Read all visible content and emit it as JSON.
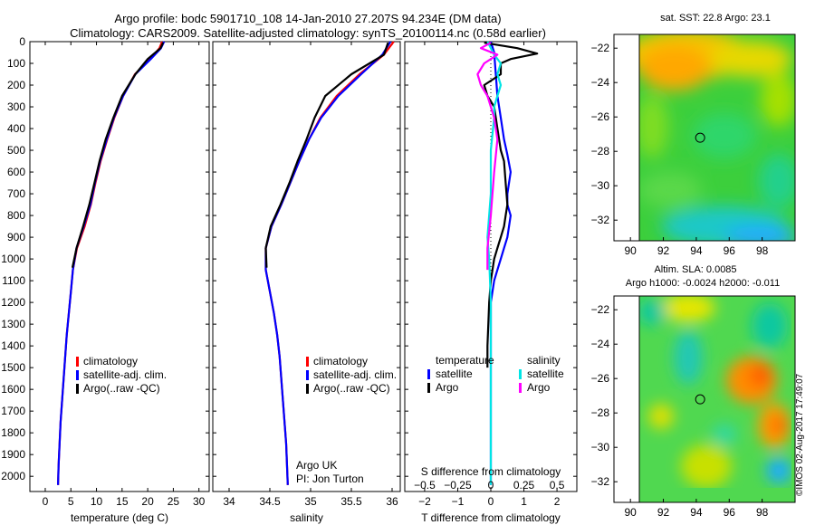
{
  "header": {
    "line1": "Argo profile: bodc 5901710_108 14-Jan-2010 27.207S 94.234E (DM data)",
    "line2": "Climatology: CARS2009. Satellite-adjusted climatology: synTS_20100114.nc (0.58d earlier)"
  },
  "stamp": "©IMOS 02-Aug-2017 17:49:07",
  "colors": {
    "climatology": "#ff0000",
    "satellite": "#0000ff",
    "argo": "#000000",
    "sal_satellite": "#00e5e5",
    "sal_argo": "#ff00ff"
  },
  "chart_data": [
    {
      "type": "line",
      "xlabel": "temperature (deg C)",
      "xlim": [
        -3,
        32
      ],
      "xticks": [
        0,
        5,
        10,
        15,
        20,
        25,
        30
      ],
      "ylim": [
        2070,
        0
      ],
      "yticks": [
        0,
        100,
        200,
        300,
        400,
        500,
        600,
        700,
        800,
        900,
        1000,
        1100,
        1200,
        1300,
        1400,
        1500,
        1600,
        1700,
        1800,
        1900,
        2000
      ],
      "legend": [
        "climatology",
        "satellite-adj. clim.",
        "Argo(..raw -QC)"
      ],
      "series": [
        {
          "name": "climatology",
          "color": "#ff0000",
          "x": [
            22.8,
            22.3,
            20.5,
            17.5,
            15.2,
            13.5,
            12.1,
            10.8,
            9.8,
            8.9,
            7.7,
            6.2,
            5.4,
            5.0,
            4.6,
            4.2,
            3.9,
            3.6,
            3.3,
            3.0,
            2.8,
            2.6,
            2.5
          ],
          "y": [
            0,
            30,
            80,
            150,
            250,
            350,
            450,
            550,
            650,
            750,
            850,
            950,
            1050,
            1150,
            1250,
            1350,
            1450,
            1550,
            1650,
            1750,
            1850,
            1950,
            2040
          ]
        },
        {
          "name": "satellite-adj. clim.",
          "color": "#0000ff",
          "x": [
            23.2,
            22.6,
            20.6,
            17.6,
            15.2,
            13.4,
            12.0,
            10.7,
            9.7,
            8.8,
            7.5,
            6.1,
            5.4,
            5.0,
            4.6,
            4.2,
            3.9,
            3.6,
            3.3,
            3.0,
            2.8,
            2.6,
            2.5
          ],
          "y": [
            0,
            30,
            80,
            150,
            250,
            350,
            450,
            550,
            650,
            750,
            850,
            950,
            1050,
            1150,
            1250,
            1350,
            1450,
            1550,
            1650,
            1750,
            1850,
            1950,
            2040
          ]
        },
        {
          "name": "Argo(..raw -QC)",
          "color": "#000000",
          "x": [
            23.0,
            22.5,
            20.0,
            17.6,
            15.0,
            13.3,
            11.8,
            10.6,
            9.6,
            8.6,
            7.4,
            6.1,
            5.3
          ],
          "y": [
            5,
            30,
            80,
            150,
            250,
            350,
            450,
            550,
            650,
            750,
            850,
            950,
            1040
          ]
        }
      ]
    },
    {
      "type": "line",
      "xlabel": "salinity",
      "xlim": [
        33.8,
        36.1
      ],
      "xticks": [
        34,
        34.5,
        35,
        35.5,
        36
      ],
      "xticklabels": [
        "34",
        "34.5",
        "35",
        "35.5",
        "36"
      ],
      "ylim": [
        2070,
        0
      ],
      "legend": [
        "climatology",
        "satellite-adj. clim.",
        "Argo(..raw -QC)"
      ],
      "annotation": [
        "Argo UK",
        "PI: Jon Turton"
      ],
      "series": [
        {
          "name": "climatology",
          "color": "#ff0000",
          "x": [
            36.02,
            35.9,
            35.6,
            35.32,
            35.12,
            34.98,
            34.86,
            34.75,
            34.64,
            34.52,
            34.45,
            34.45,
            34.5,
            34.55,
            34.59,
            34.62,
            34.64,
            34.66,
            34.68,
            34.7,
            34.72
          ],
          "y": [
            0,
            60,
            150,
            250,
            350,
            450,
            550,
            650,
            750,
            850,
            950,
            1050,
            1150,
            1250,
            1350,
            1450,
            1550,
            1650,
            1750,
            1850,
            2040
          ]
        },
        {
          "name": "satellite-adj. clim.",
          "color": "#0000ff",
          "x": [
            35.98,
            35.88,
            35.62,
            35.34,
            35.13,
            34.98,
            34.86,
            34.75,
            34.64,
            34.52,
            34.45,
            34.45,
            34.5,
            34.55,
            34.59,
            34.62,
            34.64,
            34.66,
            34.68,
            34.7,
            34.72
          ],
          "y": [
            0,
            60,
            150,
            250,
            350,
            450,
            550,
            650,
            750,
            850,
            950,
            1050,
            1150,
            1250,
            1350,
            1450,
            1550,
            1650,
            1750,
            1850,
            2040
          ]
        },
        {
          "name": "Argo(..raw -QC)",
          "color": "#000000",
          "x": [
            35.95,
            35.9,
            35.5,
            35.18,
            35.05,
            34.95,
            34.84,
            34.74,
            34.63,
            34.51,
            34.45,
            34.46
          ],
          "y": [
            5,
            60,
            150,
            250,
            350,
            450,
            550,
            650,
            750,
            850,
            950,
            1040
          ]
        }
      ]
    },
    {
      "type": "line",
      "xlabel": "T difference from climatology",
      "xlabel2": "S difference from climatology",
      "xlim": [
        -2.6,
        2.6
      ],
      "xticks": [
        -2,
        -1,
        0,
        1,
        2
      ],
      "xticklabels": [
        "−2",
        "−1",
        "0",
        "1",
        "2"
      ],
      "s_ticks": [
        -0.5,
        -0.25,
        0,
        0.25,
        0.5
      ],
      "s_ticklabels": [
        "−0.5",
        "−0.25",
        "0",
        "0.25",
        "0.5"
      ],
      "ylim": [
        2070,
        0
      ],
      "legend_temperature": [
        "temperature",
        "satellite",
        "Argo"
      ],
      "legend_salinity": [
        "salinity",
        "satellite",
        "Argo"
      ],
      "series": [
        {
          "name": "satellite",
          "group": "temperature",
          "color": "#0000ff",
          "x": [
            0.0,
            0.1,
            0.15,
            0.2,
            0.3,
            0.4,
            0.5,
            0.6,
            0.55,
            0.5,
            0.5,
            0.6,
            0.55,
            0.5,
            0.4,
            0.3,
            0.2,
            0.1,
            0.0,
            0.0,
            0.0,
            0.0
          ],
          "y": [
            0,
            50,
            150,
            250,
            350,
            450,
            520,
            600,
            650,
            700,
            750,
            800,
            850,
            900,
            950,
            1000,
            1050,
            1100,
            1200,
            1500,
            1800,
            2040
          ]
        },
        {
          "name": "Argo",
          "group": "temperature",
          "color": "#000000",
          "x": [
            -0.2,
            0.8,
            1.4,
            0.6,
            0.3,
            0.3,
            -0.2,
            -0.1,
            0.1,
            0.2,
            0.3,
            0.4,
            0.45,
            0.5,
            0.45,
            0.4,
            0.3,
            0.2,
            0.1,
            0.0,
            -0.05,
            -0.1,
            -0.1
          ],
          "y": [
            5,
            30,
            55,
            80,
            100,
            150,
            200,
            250,
            300,
            400,
            500,
            550,
            650,
            750,
            800,
            850,
            900,
            950,
            1000,
            1100,
            1200,
            1400,
            1500
          ]
        },
        {
          "name": "satellite",
          "group": "salinity",
          "color": "#00e5e5",
          "x": [
            -0.1,
            0.0,
            0.1,
            0.3,
            0.2,
            0.3,
            0.2,
            0.1,
            0.1,
            0.0,
            0.0,
            -0.1,
            -0.05,
            0.0,
            0.0,
            0.0
          ],
          "y": [
            0,
            30,
            60,
            100,
            150,
            200,
            250,
            300,
            350,
            500,
            700,
            900,
            1000,
            1200,
            1500,
            2040
          ]
        },
        {
          "name": "Argo",
          "group": "salinity",
          "color": "#ff00ff",
          "x": [
            0.0,
            -0.3,
            0.2,
            -0.2,
            -0.4,
            -0.3,
            -0.1,
            0.0,
            0.1,
            0.2,
            0.1,
            0.0,
            -0.1,
            -0.1
          ],
          "y": [
            5,
            30,
            60,
            100,
            150,
            200,
            250,
            300,
            350,
            450,
            600,
            800,
            950,
            1050
          ]
        }
      ]
    },
    {
      "type": "heatmap",
      "title": "sat. SST: 22.8  Argo: 23.1",
      "xlim": [
        89,
        100
      ],
      "ylim": [
        -33.2,
        -21.2
      ],
      "xticks": [
        90,
        92,
        94,
        96,
        98
      ],
      "yticks": [
        -22,
        -24,
        -26,
        -28,
        -30,
        -32
      ],
      "marker": {
        "lon": 94.234,
        "lat": -27.207
      }
    },
    {
      "type": "heatmap",
      "title": "Altim. SLA: 0.0085",
      "subtitle": "Argo h1000: -0.0024 h2000: -0.011",
      "xlim": [
        89,
        100
      ],
      "ylim": [
        -33.2,
        -21.2
      ],
      "xticks": [
        90,
        92,
        94,
        96,
        98
      ],
      "yticks": [
        -22,
        -24,
        -26,
        -28,
        -30,
        -32
      ],
      "marker": {
        "lon": 94.234,
        "lat": -27.207
      }
    }
  ]
}
